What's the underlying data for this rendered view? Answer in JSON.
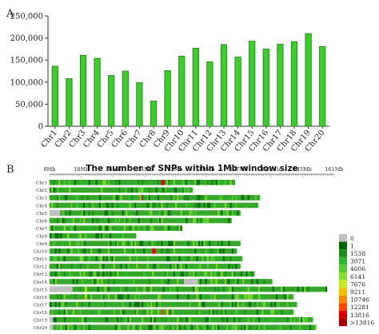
{
  "panel_a_label": "A",
  "panel_b_label": "B",
  "colors": {
    "bar_fill": "#3ccc2c",
    "bar_stroke": "#1f7a14",
    "track_green": "#35a82a",
    "legend": [
      "#c0c0c0",
      "#006400",
      "#1a8c1a",
      "#2eb82e",
      "#55cc33",
      "#88dd33",
      "#c8e820",
      "#f0c000",
      "#ff8800",
      "#ff4400",
      "#e00000",
      "#aa0000"
    ]
  },
  "chart_data": [
    {
      "type": "bar",
      "title": "",
      "xlabel": "",
      "ylabel": "",
      "ylim": [
        0,
        250000
      ],
      "yticks": [
        "0",
        "50,000",
        "100,000",
        "150,000",
        "200,000",
        "250,000"
      ],
      "ytick_values": [
        0,
        50000,
        100000,
        150000,
        200000,
        250000
      ],
      "categories": [
        "Chr1",
        "Chr2",
        "Chr3",
        "Chr4",
        "Chr5",
        "Chr6",
        "Chr7",
        "Chr8",
        "Chr9",
        "Chr10",
        "Chr11",
        "Chr12",
        "Chr13",
        "Chr14",
        "Chr15",
        "Chr16",
        "Chr17",
        "Chr18",
        "Chr19",
        "Chr20"
      ],
      "values": [
        136000,
        108000,
        161000,
        154000,
        115000,
        125000,
        99000,
        57000,
        126000,
        159000,
        177000,
        146000,
        185000,
        157000,
        193000,
        175000,
        186000,
        192000,
        210000,
        181000
      ],
      "grid": false,
      "legend": "none"
    },
    {
      "type": "heatmap",
      "title": "The number of SNPs within 1Mb window size",
      "x_axis_unit": "Mb",
      "xlim": [
        0,
        161
      ],
      "xtick_values": [
        0,
        18,
        36,
        54,
        71,
        89,
        107,
        125,
        143,
        161
      ],
      "xticks": [
        "0Mb",
        "18Mb",
        "36Mb",
        "54Mb",
        "71Mb",
        "89Mb",
        "107Mb",
        "125Mb",
        "143Mb",
        "161Mb"
      ],
      "rows": [
        "Chr1",
        "Chr2",
        "Chr3",
        "Chr4",
        "Chr5",
        "Chr6",
        "Chr7",
        "Chr8",
        "Chr9",
        "Chr10",
        "Chr11",
        "Chr12",
        "Chr13",
        "Chr14",
        "Chr15",
        "Chr16",
        "Chr17",
        "Chr18",
        "Chr19",
        "Chr20"
      ],
      "chromosome_lengths_mb": [
        105,
        81,
        119,
        118,
        108,
        103,
        75,
        49,
        108,
        106,
        109,
        108,
        116,
        126,
        157,
        138,
        140,
        138,
        149,
        151
      ],
      "legend_title": "",
      "legend_labels": [
        "0",
        "1",
        "1538",
        "3071",
        "4606",
        "6141",
        "7676",
        "9211",
        "10746",
        "12281",
        "13816",
        ">13816"
      ],
      "highlights": [
        {
          "row": "Chr1",
          "start_mb": 63,
          "end_mb": 65,
          "level": 10
        },
        {
          "row": "Chr3",
          "start_mb": 51,
          "end_mb": 52,
          "level": 8
        },
        {
          "row": "Chr10",
          "start_mb": 58,
          "end_mb": 60,
          "level": 10
        },
        {
          "row": "Chr18",
          "start_mb": 63,
          "end_mb": 64,
          "level": 9
        },
        {
          "row": "Chr18",
          "start_mb": 66,
          "end_mb": 67,
          "level": 7
        },
        {
          "row": "Chr15",
          "start_mb": 20,
          "end_mb": 21,
          "level": 6
        },
        {
          "row": "Chr16",
          "start_mb": 20,
          "end_mb": 21,
          "level": 6
        }
      ],
      "low_regions": [
        {
          "row": "Chr5",
          "start_mb": 0,
          "end_mb": 6
        },
        {
          "row": "Chr15",
          "start_mb": 0,
          "end_mb": 13
        },
        {
          "row": "Chr14",
          "start_mb": 76,
          "end_mb": 84
        },
        {
          "row": "Chr19",
          "start_mb": 0,
          "end_mb": 2
        },
        {
          "row": "Chr20",
          "start_mb": 0,
          "end_mb": 2
        }
      ]
    }
  ]
}
